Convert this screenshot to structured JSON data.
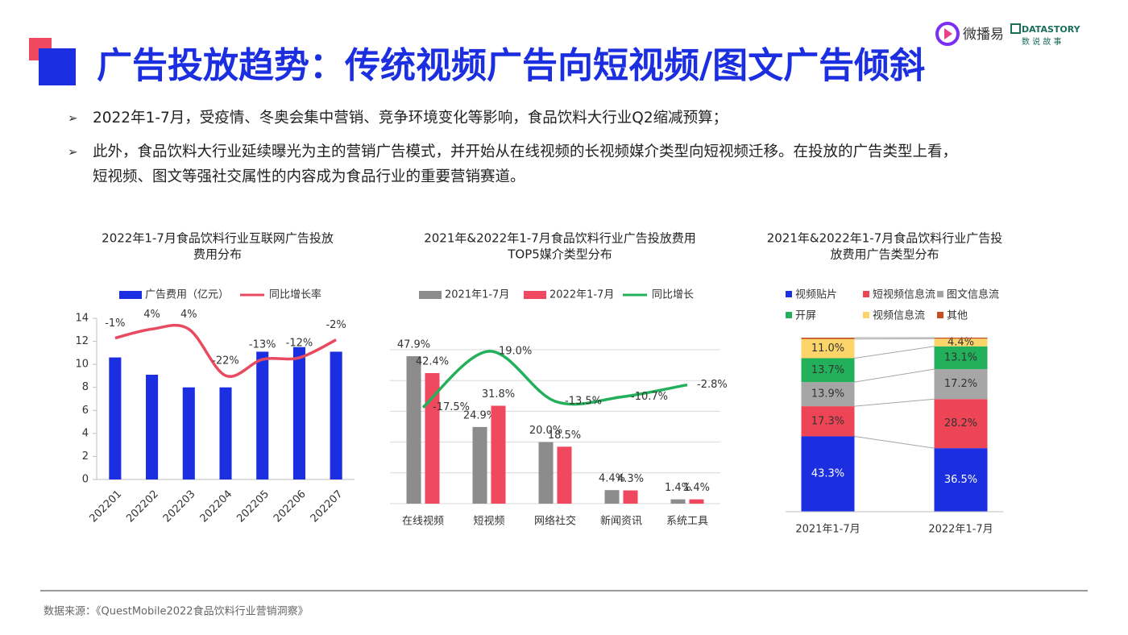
{
  "header": {
    "title": "广告投放趋势：传统视频广告向短视频/图文广告倾斜"
  },
  "logos": {
    "brand1": "微播易",
    "brand2": "DATASTORY",
    "brand2_sub": "数 说 故 事"
  },
  "bullets": [
    {
      "lines": [
        "2022年1-7月，受疫情、冬奥会集中营销、竞争环境变化等影响，食品饮料大行业Q2缩减预算；"
      ]
    },
    {
      "lines": [
        "此外，食品饮料大行业延续曝光为主的营销广告模式，并开始从在线视频的长视频媒介类型向短视频迁移。在投放的广告类型上看，",
        "短视频、图文等强社交属性的内容成为食品行业的重要营销赛道。"
      ]
    }
  ],
  "source": "数据来源：《QuestMobile2022食品饮料行业营销洞察》",
  "chart_data": [
    {
      "type": "bar",
      "title": [
        "2022年1-7月食品饮料行业互联网广告投放",
        "费用分布"
      ],
      "categories": [
        "202201",
        "202202",
        "202203",
        "202204",
        "202205",
        "202206",
        "202207"
      ],
      "series": [
        {
          "name": "广告费用（亿元）",
          "color": "#1b2fe0",
          "values": [
            10.6,
            9.1,
            8.0,
            8.0,
            11.1,
            11.5,
            11.1
          ]
        },
        {
          "name": "同比增长率",
          "color": "#e84a5f",
          "type": "line",
          "axis": "y2",
          "values": [
            -1,
            4,
            4,
            -22,
            -13,
            -12,
            -2
          ],
          "value_labels": [
            "-1%",
            "4%",
            "4%",
            "-22%",
            "-13%",
            "-12%",
            "-2%"
          ]
        }
      ],
      "ylim": [
        0,
        14
      ],
      "yticks": [
        0,
        2,
        4,
        6,
        8,
        10,
        12,
        14
      ],
      "y2lim": [
        -80,
        10
      ],
      "grid": false
    },
    {
      "type": "bar",
      "title": [
        "2021年&2022年1-7月食品饮料行业广告投放费用",
        "TOP5媒介类型分布"
      ],
      "categories": [
        "在线视频",
        "短视频",
        "网络社交",
        "新闻资讯",
        "系统工具"
      ],
      "series": [
        {
          "name": "2021年1-7月",
          "color": "#8c8c8c",
          "values": [
            47.9,
            24.9,
            20.0,
            4.4,
            1.4
          ],
          "value_labels": [
            "47.9%",
            "24.9%",
            "20.0%",
            "4.4%",
            "1.4%"
          ]
        },
        {
          "name": "2022年1-7月",
          "color": "#f0485e",
          "values": [
            42.4,
            31.8,
            18.5,
            4.3,
            1.4
          ],
          "value_labels": [
            "42.4%",
            "31.8%",
            "18.5%",
            "4.3%",
            "1.4%"
          ]
        },
        {
          "name": "同比增长",
          "color": "#22b05a",
          "type": "line",
          "axis": "y2",
          "values": [
            -17.5,
            19.0,
            -13.5,
            -10.7,
            -2.8
          ],
          "value_labels": [
            "-17.5%",
            "19.0%",
            "-13.5%",
            "-10.7%",
            "-2.8%"
          ]
        }
      ],
      "ylim": [
        0,
        50
      ],
      "yticks": [
        0,
        10,
        20,
        30,
        40,
        50
      ],
      "ytick_labels": false,
      "y2lim": [
        -80,
        20
      ],
      "grid": true
    },
    {
      "type": "stacked_bar",
      "title": [
        "2021年&2022年1-7月食品饮料行业广告投",
        "放费用广告类型分布"
      ],
      "categories": [
        "2021年1-7月",
        "2022年1-7月"
      ],
      "series": [
        {
          "name": "视频贴片",
          "color": "#1b2fe0",
          "values": [
            43.3,
            36.5
          ],
          "value_labels": [
            "43.3%",
            "36.5%"
          ]
        },
        {
          "name": "短视频信息流",
          "color": "#ee4556",
          "values": [
            17.3,
            28.2
          ],
          "value_labels": [
            "17.3%",
            "28.2%"
          ]
        },
        {
          "name": "图文信息流",
          "color": "#a6a6a6",
          "values": [
            13.9,
            17.2
          ],
          "value_labels": [
            "13.9%",
            "17.2%"
          ]
        },
        {
          "name": "开屏",
          "color": "#22b05a",
          "values": [
            13.7,
            13.1
          ],
          "value_labels": [
            "13.7%",
            "13.1%"
          ]
        },
        {
          "name": "视频信息流",
          "color": "#fbd46a",
          "values": [
            11.0,
            4.4
          ],
          "value_labels": [
            "11.0%",
            "4.4%"
          ]
        },
        {
          "name": "其他",
          "color": "#c8501e",
          "values": [
            0.8,
            0.6
          ]
        }
      ],
      "ylim": [
        0,
        100
      ]
    }
  ]
}
